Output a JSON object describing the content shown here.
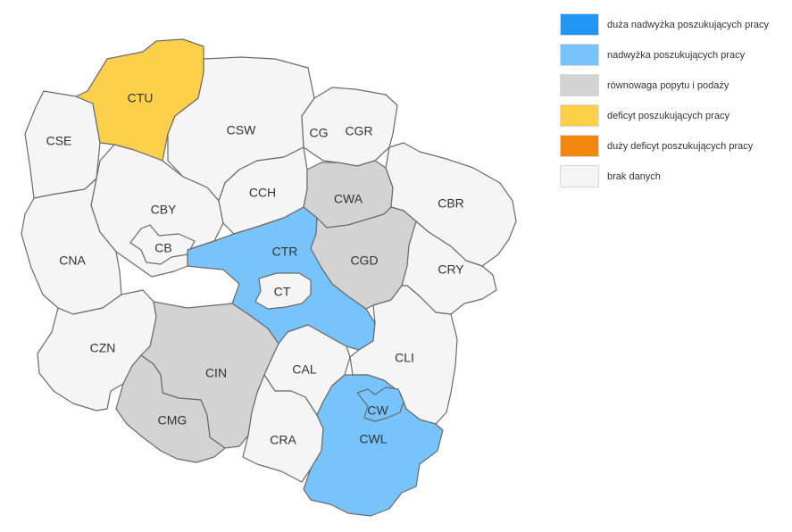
{
  "colors": {
    "duza_nadwyzka": "#2196f3",
    "nadwyzka": "#76c4fb",
    "rownowaga": "#d3d3d3",
    "deficyt": "#fdd04c",
    "duzy_deficyt": "#f2870b",
    "brak_danych": "#f5f5f5",
    "border": "#6b6b6b"
  },
  "legend": [
    {
      "key": "duza_nadwyzka",
      "label": "duża nadwyżka poszukujących pracy"
    },
    {
      "key": "nadwyzka",
      "label": "nadwyżka poszukujących pracy"
    },
    {
      "key": "rownowaga",
      "label": "równowaga popytu i podaży"
    },
    {
      "key": "deficyt",
      "label": "deficyt poszukujących pracy"
    },
    {
      "key": "duzy_deficyt",
      "label": "duży deficyt poszukujących pracy"
    },
    {
      "key": "brak_danych",
      "label": "brak danych"
    }
  ],
  "regions": [
    {
      "code": "CTU",
      "category": "deficyt"
    },
    {
      "code": "CSE",
      "category": "brak_danych"
    },
    {
      "code": "CSW",
      "category": "brak_danych"
    },
    {
      "code": "CG",
      "category": "brak_danych"
    },
    {
      "code": "CGR",
      "category": "brak_danych"
    },
    {
      "code": "CBY",
      "category": "brak_danych"
    },
    {
      "code": "CB",
      "category": "brak_danych"
    },
    {
      "code": "CCH",
      "category": "brak_danych"
    },
    {
      "code": "CWA",
      "category": "rownowaga"
    },
    {
      "code": "CBR",
      "category": "brak_danych"
    },
    {
      "code": "CNA",
      "category": "brak_danych"
    },
    {
      "code": "CTR",
      "category": "nadwyzka"
    },
    {
      "code": "CT",
      "category": "brak_danych"
    },
    {
      "code": "CGD",
      "category": "rownowaga"
    },
    {
      "code": "CRY",
      "category": "brak_danych"
    },
    {
      "code": "CZN",
      "category": "brak_danych"
    },
    {
      "code": "CIN",
      "category": "rownowaga"
    },
    {
      "code": "CAL",
      "category": "brak_danych"
    },
    {
      "code": "CLI",
      "category": "brak_danych"
    },
    {
      "code": "CMG",
      "category": "rownowaga"
    },
    {
      "code": "CRA",
      "category": "brak_danych"
    },
    {
      "code": "CWL",
      "category": "nadwyzka"
    },
    {
      "code": "CW",
      "category": "nadwyzka"
    }
  ]
}
